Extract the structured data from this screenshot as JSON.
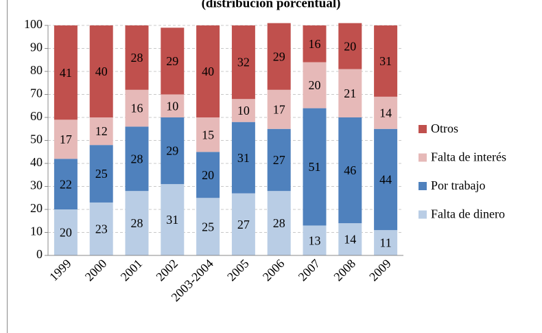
{
  "chart_data": {
    "type": "bar",
    "stacked": true,
    "title": "(distribución porcentual)",
    "categories": [
      "1999",
      "2000",
      "2001",
      "2002",
      "2003-2004",
      "2005",
      "2006",
      "2007",
      "2008",
      "2009"
    ],
    "series": [
      {
        "name": "Falta de dinero",
        "color": "#b9cde5",
        "values": [
          20,
          23,
          28,
          31,
          25,
          27,
          28,
          13,
          14,
          11
        ]
      },
      {
        "name": "Por trabajo",
        "color": "#4f81bd",
        "values": [
          22,
          25,
          28,
          29,
          20,
          31,
          27,
          51,
          46,
          44
        ]
      },
      {
        "name": "Falta de interés",
        "color": "#e6b9b8",
        "values": [
          17,
          12,
          16,
          10,
          15,
          10,
          17,
          20,
          21,
          14
        ]
      },
      {
        "name": "Otros",
        "color": "#c0504d",
        "values": [
          41,
          40,
          28,
          29,
          40,
          32,
          29,
          16,
          20,
          31
        ]
      }
    ],
    "ylim": [
      0,
      100
    ],
    "yticks": [
      0,
      10,
      20,
      30,
      40,
      50,
      60,
      70,
      80,
      90,
      100
    ],
    "grid": true,
    "legend": "right"
  }
}
